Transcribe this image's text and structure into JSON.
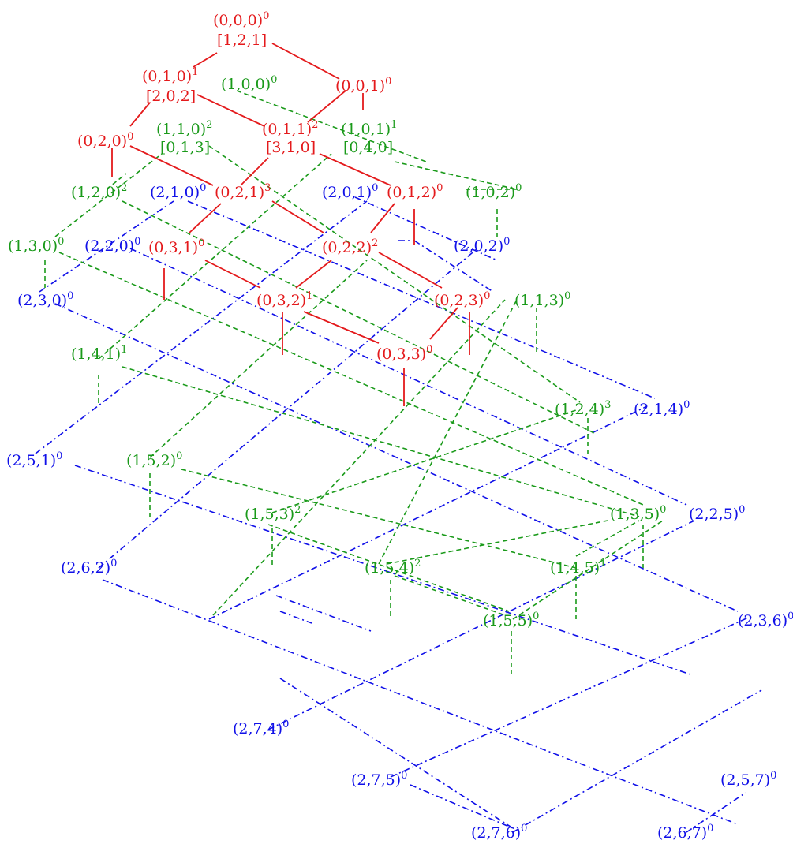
{
  "colors": {
    "red": "#e41a1c",
    "green": "#1a9a1a",
    "blue": "#1010e8"
  },
  "nodes": [
    {
      "id": "n000",
      "text": "(0,0,0)",
      "sup": "0",
      "sub": "[1,2,1]",
      "color": "red"
    },
    {
      "id": "n010",
      "text": "(0,1,0)",
      "sup": "1",
      "sub": "[2,0,2]",
      "color": "red"
    },
    {
      "id": "n001",
      "text": "(0,0,1)",
      "sup": "0",
      "color": "red"
    },
    {
      "id": "n020",
      "text": "(0,2,0)",
      "sup": "0",
      "color": "red"
    },
    {
      "id": "n011",
      "text": "(0,1,1)",
      "sup": "2",
      "sub": "[3,1,0]",
      "color": "red"
    },
    {
      "id": "n021",
      "text": "(0,2,1)",
      "sup": "3",
      "color": "red"
    },
    {
      "id": "n012",
      "text": "(0,1,2)",
      "sup": "0",
      "color": "red"
    },
    {
      "id": "n031",
      "text": "(0,3,1)",
      "sup": "0",
      "color": "red"
    },
    {
      "id": "n022",
      "text": "(0,2,2)",
      "sup": "2",
      "color": "red"
    },
    {
      "id": "n032",
      "text": "(0,3,2)",
      "sup": "1",
      "color": "red"
    },
    {
      "id": "n023",
      "text": "(0,2,3)",
      "sup": "0",
      "color": "red"
    },
    {
      "id": "n033",
      "text": "(0,3,3)",
      "sup": "0",
      "color": "red"
    },
    {
      "id": "g100",
      "text": "(1,0,0)",
      "sup": "0",
      "color": "green"
    },
    {
      "id": "g110",
      "text": "(1,1,0)",
      "sup": "2",
      "sub": "[0,1,3]",
      "color": "green"
    },
    {
      "id": "g101",
      "text": "(1,0,1)",
      "sup": "1",
      "sub": "[0,4,0]",
      "color": "green"
    },
    {
      "id": "g120",
      "text": "(1,2,0)",
      "sup": "2",
      "color": "green"
    },
    {
      "id": "g102",
      "text": "(1,0,2)",
      "sup": "0",
      "color": "green"
    },
    {
      "id": "g130",
      "text": "(1,3,0)",
      "sup": "0",
      "color": "green"
    },
    {
      "id": "g113",
      "text": "(1,1,3)",
      "sup": "0",
      "color": "green"
    },
    {
      "id": "g141",
      "text": "(1,4,1)",
      "sup": "1",
      "color": "green"
    },
    {
      "id": "g124",
      "text": "(1,2,4)",
      "sup": "3",
      "color": "green"
    },
    {
      "id": "g152",
      "text": "(1,5,2)",
      "sup": "0",
      "color": "green"
    },
    {
      "id": "g153",
      "text": "(1,5,3)",
      "sup": "2",
      "color": "green"
    },
    {
      "id": "g135",
      "text": "(1,3,5)",
      "sup": "0",
      "color": "green"
    },
    {
      "id": "g154",
      "text": "(1,5,4)",
      "sup": "2",
      "color": "green"
    },
    {
      "id": "g145",
      "text": "(1,4,5)",
      "sup": "1",
      "color": "green"
    },
    {
      "id": "g155",
      "text": "(1,5,5)",
      "sup": "0",
      "color": "green"
    },
    {
      "id": "b210",
      "text": "(2,1,0)",
      "sup": "0",
      "color": "blue"
    },
    {
      "id": "b201",
      "text": "(2,0,1)",
      "sup": "0",
      "color": "blue"
    },
    {
      "id": "b220",
      "text": "(2,2,0)",
      "sup": "0",
      "color": "blue"
    },
    {
      "id": "b202",
      "text": "(2,0,2)",
      "sup": "0",
      "color": "blue"
    },
    {
      "id": "b230",
      "text": "(2,3,0)",
      "sup": "0",
      "color": "blue"
    },
    {
      "id": "b214",
      "text": "(2,1,4)",
      "sup": "0",
      "color": "blue"
    },
    {
      "id": "b251",
      "text": "(2,5,1)",
      "sup": "0",
      "color": "blue"
    },
    {
      "id": "b225",
      "text": "(2,2,5)",
      "sup": "0",
      "color": "blue"
    },
    {
      "id": "b262",
      "text": "(2,6,2)",
      "sup": "0",
      "color": "blue"
    },
    {
      "id": "b236",
      "text": "(2,3,6)",
      "sup": "0",
      "color": "blue"
    },
    {
      "id": "b274",
      "text": "(2,7,4)",
      "sup": "0",
      "color": "blue"
    },
    {
      "id": "b275",
      "text": "(2,7,5)",
      "sup": "0",
      "color": "blue"
    },
    {
      "id": "b257",
      "text": "(2,5,7)",
      "sup": "0",
      "color": "blue"
    },
    {
      "id": "b276",
      "text": "(2,7,6)",
      "sup": "0",
      "color": "blue"
    },
    {
      "id": "b267",
      "text": "(2,6,7)",
      "sup": "0",
      "color": "blue"
    }
  ]
}
